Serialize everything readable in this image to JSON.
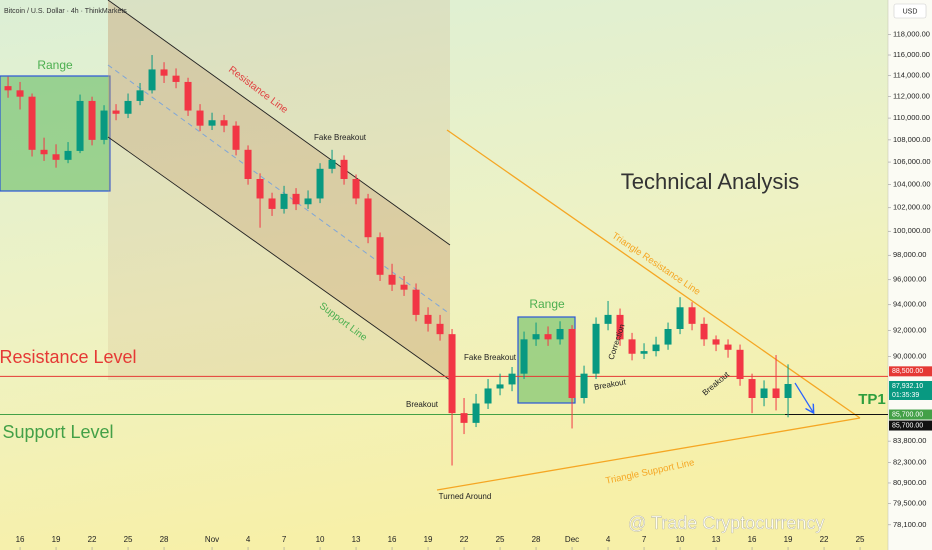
{
  "chart_data": {
    "type": "candlestick",
    "title": "Bitcoin / U.S. Dollar · 4h · ThinkMarkets",
    "currency": "USD",
    "log_scale": true,
    "up_color": "#089981",
    "down_color": "#f23645",
    "ylim": [
      76460,
      121500
    ],
    "yticks": [
      {
        "value": 118000,
        "label": "118,000.00"
      },
      {
        "value": 116000,
        "label": "116,000.00"
      },
      {
        "value": 114000,
        "label": "114,000.00"
      },
      {
        "value": 112000,
        "label": "112,000.00"
      },
      {
        "value": 110000,
        "label": "110,000.00"
      },
      {
        "value": 108000,
        "label": "108,000.00"
      },
      {
        "value": 106000,
        "label": "106,000.00"
      },
      {
        "value": 104000,
        "label": "104,000.00"
      },
      {
        "value": 102000,
        "label": "102,000.00"
      },
      {
        "value": 100000,
        "label": "100,000.00"
      },
      {
        "value": 98000,
        "label": "98,000.00"
      },
      {
        "value": 96000,
        "label": "96,000.00"
      },
      {
        "value": 94000,
        "label": "94,000.00"
      },
      {
        "value": 92000,
        "label": "92,000.00"
      },
      {
        "value": 90000,
        "label": "90,000.00"
      },
      {
        "value": 83800,
        "label": "83,800.00"
      },
      {
        "value": 82300,
        "label": "82,300.00"
      },
      {
        "value": 80900,
        "label": "80,900.00"
      },
      {
        "value": 79500,
        "label": "79,500.00"
      },
      {
        "value": 78100,
        "label": "78,100.00"
      }
    ],
    "xlim": [
      -1.67,
      72.33
    ],
    "xticks": [
      {
        "value": 0,
        "label": "16"
      },
      {
        "value": 3,
        "label": "19"
      },
      {
        "value": 6,
        "label": "22"
      },
      {
        "value": 9,
        "label": "25"
      },
      {
        "value": 12,
        "label": "28"
      },
      {
        "value": 16,
        "label": "Nov"
      },
      {
        "value": 19,
        "label": "4"
      },
      {
        "value": 22,
        "label": "7"
      },
      {
        "value": 25,
        "label": "10"
      },
      {
        "value": 28,
        "label": "13"
      },
      {
        "value": 31,
        "label": "16"
      },
      {
        "value": 34,
        "label": "19"
      },
      {
        "value": 37,
        "label": "22"
      },
      {
        "value": 40,
        "label": "25"
      },
      {
        "value": 43,
        "label": "28"
      },
      {
        "value": 46,
        "label": "Dec"
      },
      {
        "value": 49,
        "label": "4"
      },
      {
        "value": 52,
        "label": "7"
      },
      {
        "value": 55,
        "label": "10"
      },
      {
        "value": 58,
        "label": "13"
      },
      {
        "value": 61,
        "label": "16"
      },
      {
        "value": 64,
        "label": "19"
      },
      {
        "value": 67,
        "label": "22"
      },
      {
        "value": 70,
        "label": "25"
      }
    ],
    "x": [
      -1,
      0,
      1,
      2,
      3,
      4,
      5,
      6,
      7,
      8,
      9,
      10,
      11,
      12,
      13,
      14,
      15,
      16,
      17,
      18,
      19,
      20,
      21,
      22,
      23,
      24,
      25,
      26,
      27,
      28,
      29,
      30,
      31,
      32,
      33,
      34,
      35,
      36,
      37,
      38,
      39,
      40,
      41,
      42,
      43,
      44,
      45,
      46,
      47,
      48,
      49,
      50,
      51,
      52,
      53,
      54,
      55,
      56,
      57,
      58,
      59,
      60,
      61,
      62,
      63,
      64
    ],
    "ohlc": [
      [
        113000,
        113900,
        111900,
        112600
      ],
      [
        112600,
        113400,
        110800,
        112000
      ],
      [
        112000,
        112300,
        106500,
        107100
      ],
      [
        107100,
        108200,
        106100,
        106700
      ],
      [
        106700,
        107600,
        105500,
        106200
      ],
      [
        106200,
        107800,
        105900,
        107000
      ],
      [
        107000,
        112200,
        106800,
        111600
      ],
      [
        111600,
        112000,
        107500,
        108000
      ],
      [
        108000,
        111200,
        107600,
        110700
      ],
      [
        110700,
        111300,
        109800,
        110400
      ],
      [
        110400,
        112300,
        110000,
        111600
      ],
      [
        111600,
        113300,
        111200,
        112600
      ],
      [
        112600,
        116000,
        112300,
        114600
      ],
      [
        114600,
        115300,
        113300,
        114000
      ],
      [
        114000,
        114700,
        112800,
        113400
      ],
      [
        113400,
        113800,
        110200,
        110700
      ],
      [
        110700,
        111300,
        108800,
        109300
      ],
      [
        109300,
        110500,
        108900,
        109800
      ],
      [
        109800,
        110300,
        108700,
        109300
      ],
      [
        109300,
        109700,
        106600,
        107100
      ],
      [
        107100,
        107500,
        104000,
        104500
      ],
      [
        104500,
        105000,
        100300,
        102800
      ],
      [
        102800,
        103300,
        101300,
        101900
      ],
      [
        101900,
        103900,
        101500,
        103200
      ],
      [
        103200,
        103700,
        101800,
        102300
      ],
      [
        102300,
        103500,
        101900,
        102800
      ],
      [
        102800,
        105900,
        102400,
        105400
      ],
      [
        105400,
        107100,
        105000,
        106200
      ],
      [
        106200,
        106600,
        104000,
        104500
      ],
      [
        104500,
        104900,
        102300,
        102800
      ],
      [
        102800,
        103200,
        99000,
        99500
      ],
      [
        99500,
        99900,
        95900,
        96400
      ],
      [
        96400,
        97300,
        95100,
        95600
      ],
      [
        95600,
        96300,
        94700,
        95200
      ],
      [
        95200,
        95700,
        92700,
        93200
      ],
      [
        93200,
        93800,
        91900,
        92500
      ],
      [
        92500,
        93200,
        91200,
        91700
      ],
      [
        91700,
        92100,
        82100,
        85800
      ],
      [
        85800,
        86900,
        84300,
        85100
      ],
      [
        85100,
        87200,
        84800,
        86500
      ],
      [
        86500,
        88300,
        86100,
        87600
      ],
      [
        87600,
        88700,
        87100,
        87900
      ],
      [
        87900,
        89200,
        87400,
        88700
      ],
      [
        88700,
        91900,
        88300,
        91300
      ],
      [
        91300,
        92600,
        90800,
        91700
      ],
      [
        91700,
        92300,
        90800,
        91300
      ],
      [
        91300,
        92700,
        90900,
        92100
      ],
      [
        92100,
        92400,
        84700,
        86900
      ],
      [
        86900,
        89300,
        86500,
        88700
      ],
      [
        88700,
        93000,
        88300,
        92500
      ],
      [
        92500,
        94300,
        92000,
        93200
      ],
      [
        93200,
        93700,
        90800,
        91300
      ],
      [
        91300,
        91800,
        89700,
        90200
      ],
      [
        90200,
        91000,
        89800,
        90400
      ],
      [
        90400,
        91500,
        90000,
        90900
      ],
      [
        90900,
        92600,
        90500,
        92100
      ],
      [
        92100,
        94600,
        91700,
        93800
      ],
      [
        93800,
        94200,
        92000,
        92500
      ],
      [
        92500,
        93000,
        90800,
        91300
      ],
      [
        91300,
        91600,
        90400,
        90900
      ],
      [
        90900,
        91300,
        89900,
        90500
      ],
      [
        90500,
        90900,
        87800,
        88300
      ],
      [
        88300,
        88700,
        85800,
        86900
      ],
      [
        86900,
        88200,
        86300,
        87600
      ],
      [
        87600,
        90100,
        86000,
        86900
      ],
      [
        86900,
        89400,
        85500,
        87932.1
      ]
    ],
    "levels": [
      {
        "name": "Resistance Level",
        "value": 88500,
        "label": "88,500.00",
        "color": "#e53935"
      },
      {
        "name": "Support Level",
        "value": 85700,
        "label": "85,700.00",
        "color": "#43a047"
      }
    ],
    "last_price": {
      "value": 87932.1,
      "label": "87,932.10",
      "countdown": "01:35:39",
      "color": "#089981"
    },
    "marker_price": {
      "value": 85700,
      "label": "85,700.00",
      "color": "#111111"
    },
    "annotations": [
      "Range",
      "Resistance Line",
      "Support Line",
      "Fake Breakout",
      "Breakout",
      "Turned Around",
      "Range",
      "Fake Breakout",
      "Breakout",
      "Correction",
      "Breakout",
      "Triangle Resistance Line",
      "Triangle Support Line",
      "Technical Analysis",
      "TP1"
    ],
    "watermark": "@ Trade Cryptocurrency"
  }
}
